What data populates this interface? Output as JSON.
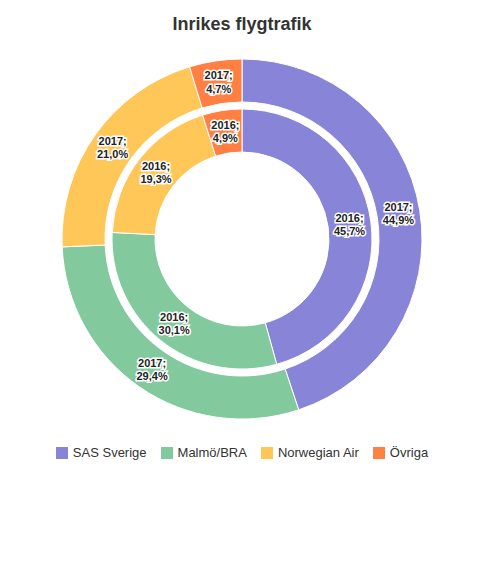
{
  "chart_data": {
    "type": "pie",
    "title": "Inrikes flygtrafik",
    "categories": [
      "SAS Sverige",
      "Malmö/BRA",
      "Norwegian Air",
      "Övriga"
    ],
    "series": [
      {
        "name": "2016",
        "values": [
          45.7,
          30.1,
          19.3,
          4.9
        ],
        "value_labels": [
          "2016;\n45,7%",
          "2016;\n30,1%",
          "2016;\n19,3%",
          "2016;\n4,9%"
        ]
      },
      {
        "name": "2017",
        "values": [
          44.9,
          29.4,
          21.0,
          4.7
        ],
        "value_labels": [
          "2017;\n44,9%",
          "2017;\n29,4%",
          "2017;\n21,0%",
          "2017;\n4,7%"
        ]
      }
    ],
    "colors": [
      "#8884d8",
      "#82ca9d",
      "#ffc658",
      "#ff8042"
    ],
    "data_labels": true,
    "legend": "bottom"
  }
}
